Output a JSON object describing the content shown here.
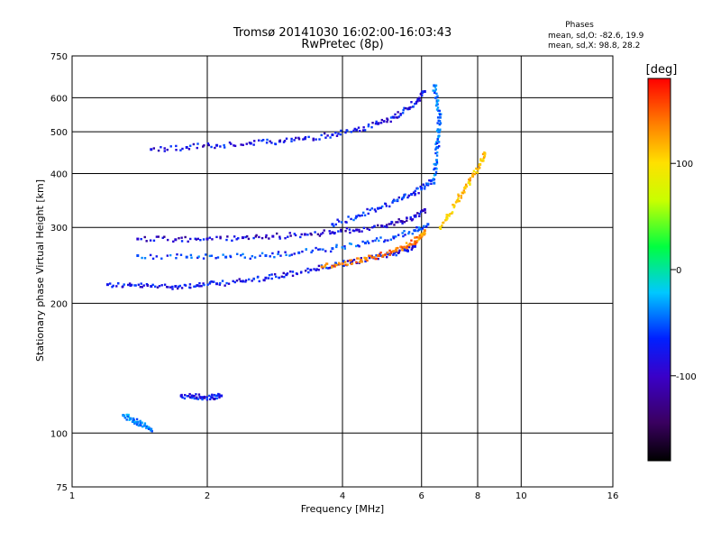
{
  "chart_data": {
    "type": "scatter",
    "title": "Tromsø 20141030 16:02:00-16:03:43",
    "subtitle": "RwPretec (8p)",
    "xlabel": "Frequency [MHz]",
    "ylabel": "Stationary phase Virtual Height [km]",
    "x_scale": "log",
    "y_scale": "log",
    "xlim": [
      1,
      16
    ],
    "ylim": [
      75,
      750
    ],
    "x_ticks": [
      1,
      2,
      4,
      6,
      8,
      10,
      16
    ],
    "x_tick_labels": [
      "1",
      "2",
      "4",
      "6",
      "8",
      "10",
      "16"
    ],
    "y_ticks": [
      75,
      100,
      200,
      300,
      400,
      500,
      600,
      750
    ],
    "y_tick_labels": [
      "75",
      "100",
      "200",
      "300",
      "400",
      "500",
      "600",
      "750"
    ],
    "grid": true,
    "info": {
      "heading": "Phases",
      "line1": "mean, sd,O: -82.6, 19.9",
      "line2": "mean, sd,X:  98.8, 28.2"
    },
    "colorbar": {
      "label": "[deg]",
      "range": [
        -180,
        180
      ],
      "ticks": [
        100,
        0,
        -100
      ],
      "tick_labels": [
        "100",
        "0",
        "-100"
      ],
      "colormap": "rainbow: black-purple-blue-cyan-green-yellow-orange-red"
    },
    "series": [
      {
        "trace": "blue_low_trace",
        "points": [
          [
            1.2,
            221
          ],
          [
            1.35,
            220
          ],
          [
            1.5,
            219
          ],
          [
            1.7,
            219
          ],
          [
            1.9,
            220
          ],
          [
            2.1,
            222
          ],
          [
            2.4,
            225
          ],
          [
            2.7,
            229
          ],
          [
            3.0,
            233
          ],
          [
            3.4,
            239
          ],
          [
            3.8,
            244
          ],
          [
            4.2,
            249
          ],
          [
            4.7,
            255
          ],
          [
            5.1,
            260
          ],
          [
            5.5,
            266
          ],
          [
            5.8,
            271
          ]
        ],
        "phase": -100
      },
      {
        "trace": "orange_x_trace",
        "points": [
          [
            3.6,
            243
          ],
          [
            4.0,
            247
          ],
          [
            4.4,
            252
          ],
          [
            4.8,
            258
          ],
          [
            5.2,
            264
          ],
          [
            5.5,
            270
          ],
          [
            5.8,
            278
          ],
          [
            6.0,
            286
          ],
          [
            6.1,
            295
          ]
        ],
        "phase": 140
      },
      {
        "trace": "layer_280",
        "points": [
          [
            1.4,
            282
          ],
          [
            1.7,
            281
          ],
          [
            2.0,
            282
          ],
          [
            2.4,
            284
          ],
          [
            2.8,
            286
          ],
          [
            3.3,
            289
          ],
          [
            3.8,
            292
          ],
          [
            4.3,
            296
          ],
          [
            4.9,
            302
          ],
          [
            5.4,
            310
          ],
          [
            5.8,
            318
          ],
          [
            6.1,
            330
          ]
        ],
        "phase": -110
      },
      {
        "trace": "layer_255",
        "points": [
          [
            1.4,
            258
          ],
          [
            1.8,
            256
          ],
          [
            2.2,
            256
          ],
          [
            2.7,
            258
          ],
          [
            3.2,
            262
          ],
          [
            3.8,
            268
          ],
          [
            4.5,
            276
          ],
          [
            5.2,
            285
          ],
          [
            5.8,
            295
          ],
          [
            6.2,
            305
          ]
        ],
        "phase": -80
      },
      {
        "trace": "layer_400_rising",
        "points": [
          [
            3.8,
            305
          ],
          [
            4.3,
            318
          ],
          [
            4.8,
            332
          ],
          [
            5.3,
            346
          ],
          [
            5.7,
            358
          ],
          [
            6.0,
            370
          ],
          [
            6.3,
            385
          ]
        ],
        "phase": -90
      },
      {
        "trace": "f2_upper",
        "points": [
          [
            1.5,
            455
          ],
          [
            1.8,
            460
          ],
          [
            2.1,
            465
          ],
          [
            2.5,
            470
          ],
          [
            2.9,
            475
          ],
          [
            3.3,
            482
          ],
          [
            3.8,
            492
          ],
          [
            4.3,
            505
          ],
          [
            4.8,
            522
          ],
          [
            5.2,
            540
          ],
          [
            5.6,
            565
          ],
          [
            5.9,
            595
          ],
          [
            6.1,
            620
          ]
        ],
        "phase": -100
      },
      {
        "trace": "spread_640",
        "points": [
          [
            6.4,
            380
          ],
          [
            6.45,
            420
          ],
          [
            6.5,
            460
          ],
          [
            6.55,
            500
          ],
          [
            6.6,
            540
          ],
          [
            6.5,
            590
          ],
          [
            6.4,
            640
          ]
        ],
        "phase": -70
      },
      {
        "trace": "x_branch_high",
        "points": [
          [
            6.6,
            300
          ],
          [
            6.9,
            320
          ],
          [
            7.2,
            345
          ],
          [
            7.5,
            370
          ],
          [
            7.8,
            395
          ],
          [
            8.1,
            420
          ],
          [
            8.3,
            445
          ]
        ],
        "phase": 110
      },
      {
        "trace": "e_region",
        "points": [
          [
            1.3,
            110
          ],
          [
            1.35,
            108
          ],
          [
            1.4,
            106
          ],
          [
            1.45,
            104
          ],
          [
            1.5,
            102
          ]
        ],
        "phase": -60
      },
      {
        "trace": "es_patch",
        "points": [
          [
            1.75,
            122
          ],
          [
            1.85,
            122
          ],
          [
            1.95,
            121
          ],
          [
            2.05,
            121
          ],
          [
            2.15,
            122
          ]
        ],
        "phase": -100
      }
    ]
  }
}
